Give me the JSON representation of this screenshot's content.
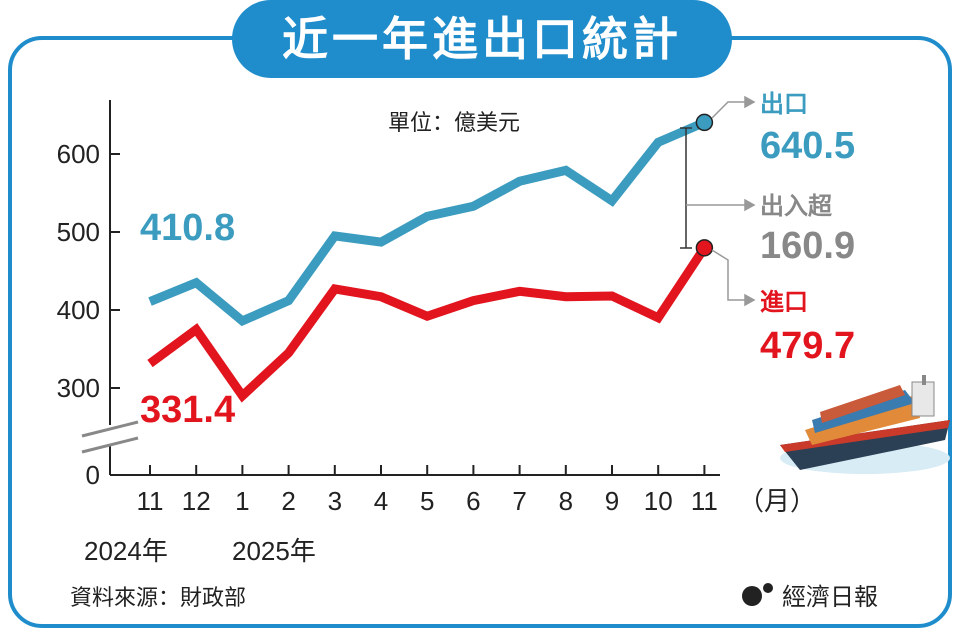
{
  "chart_data": {
    "type": "line",
    "title": "近一年進出口統計",
    "unit_label": "單位：億美元",
    "categories": [
      "11",
      "12",
      "1",
      "2",
      "3",
      "4",
      "5",
      "6",
      "7",
      "8",
      "9",
      "10",
      "11"
    ],
    "x_unit": "（月）",
    "year_labels": [
      "2024年",
      "2025年"
    ],
    "yticks": [
      "600",
      "500",
      "400",
      "300",
      "0"
    ],
    "ylim": [
      0,
      650
    ],
    "axis_break": true,
    "grid": false,
    "series": [
      {
        "name": "出口",
        "color": "#3b9cc0",
        "values": [
          410.8,
          435,
          386,
          412,
          495,
          487,
          520,
          533,
          565,
          579,
          540,
          615,
          640.5
        ]
      },
      {
        "name": "進口",
        "color": "#e2141e",
        "values": [
          331.4,
          375,
          290,
          345,
          427,
          417,
          392,
          412,
          424,
          417,
          418,
          390,
          479.7
        ]
      }
    ],
    "annotations": {
      "export_start": "410.8",
      "import_start": "331.4",
      "export_label": "出口",
      "export_end": "640.5",
      "balance_label": "出入超",
      "balance_value": "160.9",
      "balance_color": "#888888",
      "import_label": "進口",
      "import_end": "479.7"
    },
    "source": "資料來源：財政部",
    "publisher": "經濟日報"
  }
}
